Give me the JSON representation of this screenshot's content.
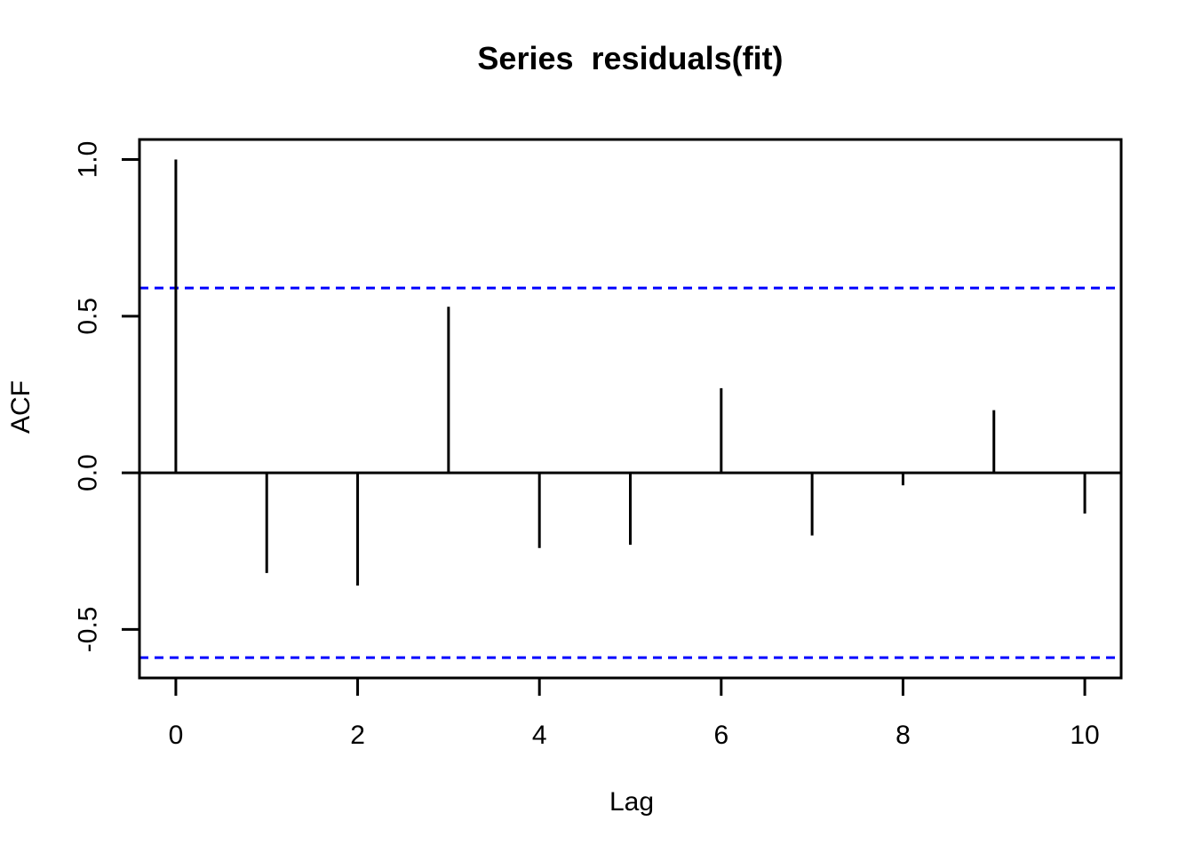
{
  "chart_data": {
    "type": "bar",
    "subtype": "acf-spike-plot",
    "title": "Series  residuals(fit)",
    "xlabel": "Lag",
    "ylabel": "ACF",
    "x": [
      0,
      1,
      2,
      3,
      4,
      5,
      6,
      7,
      8,
      9,
      10
    ],
    "acf_values": [
      1.0,
      -0.32,
      -0.36,
      0.53,
      -0.24,
      -0.23,
      0.27,
      -0.2,
      -0.04,
      0.2,
      -0.13
    ],
    "confidence_bounds": {
      "upper": 0.59,
      "lower": -0.59
    },
    "x_ticks": [
      0,
      2,
      4,
      6,
      8,
      10
    ],
    "x_tick_labels": [
      "0",
      "2",
      "4",
      "6",
      "8",
      "10"
    ],
    "y_ticks": [
      1.0,
      0.5,
      0.0,
      -0.5
    ],
    "y_tick_labels": [
      "1.0",
      "0.5",
      "0.0",
      "-0.5"
    ],
    "xlim": [
      -0.4,
      10.4
    ],
    "ylim": [
      -0.655,
      1.064
    ],
    "grid": false,
    "legend": null,
    "baseline": 0,
    "colors": {
      "spike": "#000000",
      "axis": "#000000",
      "confidence_line": "#0000ff",
      "background": "#ffffff",
      "text": "#000000"
    }
  }
}
